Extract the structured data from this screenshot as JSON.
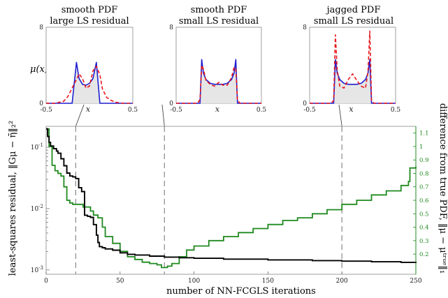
{
  "figure": {
    "xlabel": "number of NN-FCGLS iterations",
    "ylabel_left": "least-squares residual, ‖Gμ − η̄‖₂²",
    "ylabel_right": "difference from true PDF, ‖μ − μᵗʳᵘᵉ‖₁"
  },
  "chart_data": [
    {
      "type": "line",
      "panel": "inset-1",
      "title_line1": "smooth PDF",
      "title_line2": "large LS residual",
      "ylabel": "μ(x)",
      "xlabel": "x",
      "xlim": [
        -0.5,
        0.5
      ],
      "ylim": [
        0,
        8
      ],
      "xtick_labels": [
        "-0.5",
        "0.5"
      ],
      "ytick_labels": [
        "0",
        "8"
      ],
      "x": [
        -0.5,
        -0.4,
        -0.3,
        -0.25,
        -0.2,
        -0.15,
        -0.12,
        -0.08,
        -0.04,
        0,
        0.04,
        0.08,
        0.12,
        0.15,
        0.2,
        0.25,
        0.3,
        0.4,
        0.5
      ],
      "series": [
        {
          "color": "#1f1fd0",
          "dash": false,
          "values": [
            0,
            0,
            0,
            0,
            0,
            4.3,
            2.6,
            2.0,
            1.9,
            2.1,
            2.6,
            4.3,
            0,
            0,
            0,
            0,
            0,
            0,
            0
          ]
        },
        {
          "color": "#e8161b",
          "dash": true,
          "values": [
            0,
            0,
            0.2,
            0.7,
            1.6,
            2.5,
            3.1,
            2.6,
            1.6,
            1.8,
            3.4,
            3.9,
            3.0,
            1.5,
            0.6,
            0.3,
            0.1,
            0,
            0
          ]
        }
      ]
    },
    {
      "type": "line",
      "panel": "inset-2",
      "title_line1": "smooth PDF",
      "title_line2": "small LS residual",
      "xlabel": "x",
      "xlim": [
        -0.5,
        0.5
      ],
      "ylim": [
        0,
        8
      ],
      "xtick_labels": [
        "-0.5",
        "0.5"
      ],
      "ytick_labels": [
        "0",
        "8"
      ],
      "x": [
        -0.5,
        -0.25,
        -0.22,
        -0.2,
        -0.18,
        -0.15,
        -0.1,
        -0.05,
        0,
        0.05,
        0.1,
        0.15,
        0.18,
        0.2,
        0.22,
        0.25,
        0.5
      ],
      "series": [
        {
          "color": "#1f1fd0",
          "dash": false,
          "values": [
            0,
            0,
            0,
            4.6,
            3.2,
            2.5,
            2.1,
            2.0,
            2.0,
            2.0,
            2.1,
            2.5,
            3.2,
            4.6,
            0,
            0,
            0
          ]
        },
        {
          "color": "#e8161b",
          "dash": true,
          "values": [
            0,
            0,
            0.4,
            4.0,
            3.6,
            2.4,
            2.0,
            1.8,
            2.2,
            1.9,
            1.9,
            2.7,
            3.8,
            3.6,
            0.3,
            0,
            0
          ]
        }
      ]
    },
    {
      "type": "line",
      "panel": "inset-3",
      "title_line1": "jagged PDF",
      "title_line2": "small LS residual",
      "xlabel": "x",
      "xlim": [
        -0.5,
        0.5
      ],
      "ylim": [
        0,
        8
      ],
      "xtick_labels": [
        "-0.5",
        "0.5"
      ],
      "ytick_labels": [
        "0",
        "8"
      ],
      "x": [
        -0.5,
        -0.25,
        -0.22,
        -0.2,
        -0.18,
        -0.15,
        -0.1,
        -0.05,
        0,
        0.05,
        0.1,
        0.15,
        0.18,
        0.2,
        0.22,
        0.25,
        0.5
      ],
      "series": [
        {
          "color": "#1f1fd0",
          "dash": false,
          "values": [
            0,
            0,
            0,
            4.6,
            3.2,
            2.5,
            2.1,
            2.0,
            2.0,
            2.0,
            2.1,
            2.5,
            3.2,
            4.6,
            0,
            0,
            0
          ]
        },
        {
          "color": "#e8161b",
          "dash": true,
          "values": [
            0,
            0,
            0.3,
            7.2,
            3.6,
            1.8,
            1.6,
            2.5,
            3.1,
            2.4,
            1.8,
            1.6,
            3.4,
            7.6,
            0.3,
            0,
            0
          ]
        }
      ]
    },
    {
      "type": "line",
      "panel": "main",
      "xlim": [
        0,
        250
      ],
      "xtick_labels": [
        "0",
        "50",
        "100",
        "150",
        "200",
        "250"
      ],
      "ylim_left_log": [
        0.00085,
        0.22
      ],
      "ytick_labels_left": [
        "10^-3",
        "10^-2",
        "10^-1"
      ],
      "ylim_right": [
        0.05,
        1.15
      ],
      "ytick_labels_right": [
        "0.2",
        "0.3",
        "0.4",
        "0.5",
        "0.6",
        "0.7",
        "0.8",
        "0.9",
        "1",
        "1.1"
      ],
      "marked_iterations": [
        20,
        80,
        200
      ],
      "series": [
        {
          "axis": "left",
          "color": "#000000",
          "x": [
            0,
            1,
            2,
            3,
            5,
            7,
            8,
            10,
            12,
            14,
            16,
            18,
            20,
            22,
            24,
            26,
            28,
            30,
            32,
            34,
            35,
            36,
            38,
            40,
            45,
            50,
            55,
            60,
            70,
            80,
            90,
            100,
            120,
            150,
            180,
            200,
            220,
            240,
            245,
            250
          ],
          "values": [
            0.2,
            0.15,
            0.12,
            0.105,
            0.095,
            0.087,
            0.08,
            0.065,
            0.05,
            0.038,
            0.034,
            0.033,
            0.031,
            0.022,
            0.019,
            0.0078,
            0.0075,
            0.0072,
            0.0055,
            0.0037,
            0.0028,
            0.0024,
            0.0023,
            0.0022,
            0.0021,
            0.0019,
            0.0018,
            0.00175,
            0.00168,
            0.00162,
            0.00158,
            0.00155,
            0.0015,
            0.00146,
            0.00142,
            0.00139,
            0.00136,
            0.00133,
            0.00133,
            0.0013
          ]
        },
        {
          "axis": "right",
          "color": "#1f8a1f",
          "x": [
            0,
            2,
            4,
            6,
            8,
            10,
            12,
            14,
            16,
            18,
            20,
            25,
            30,
            32,
            35,
            38,
            40,
            45,
            50,
            55,
            60,
            65,
            70,
            75,
            78,
            80,
            82,
            85,
            90,
            95,
            100,
            110,
            120,
            130,
            140,
            150,
            160,
            170,
            180,
            190,
            200,
            210,
            220,
            230,
            240,
            245,
            246,
            250
          ],
          "values": [
            1.13,
            1.0,
            0.86,
            0.82,
            0.8,
            0.78,
            0.7,
            0.6,
            0.58,
            0.57,
            0.57,
            0.55,
            0.52,
            0.49,
            0.47,
            0.4,
            0.33,
            0.28,
            0.22,
            0.18,
            0.16,
            0.14,
            0.13,
            0.12,
            0.1,
            0.1,
            0.11,
            0.13,
            0.18,
            0.23,
            0.26,
            0.3,
            0.33,
            0.36,
            0.39,
            0.42,
            0.45,
            0.47,
            0.5,
            0.53,
            0.57,
            0.6,
            0.64,
            0.67,
            0.71,
            0.74,
            0.84,
            0.85
          ]
        }
      ]
    }
  ]
}
